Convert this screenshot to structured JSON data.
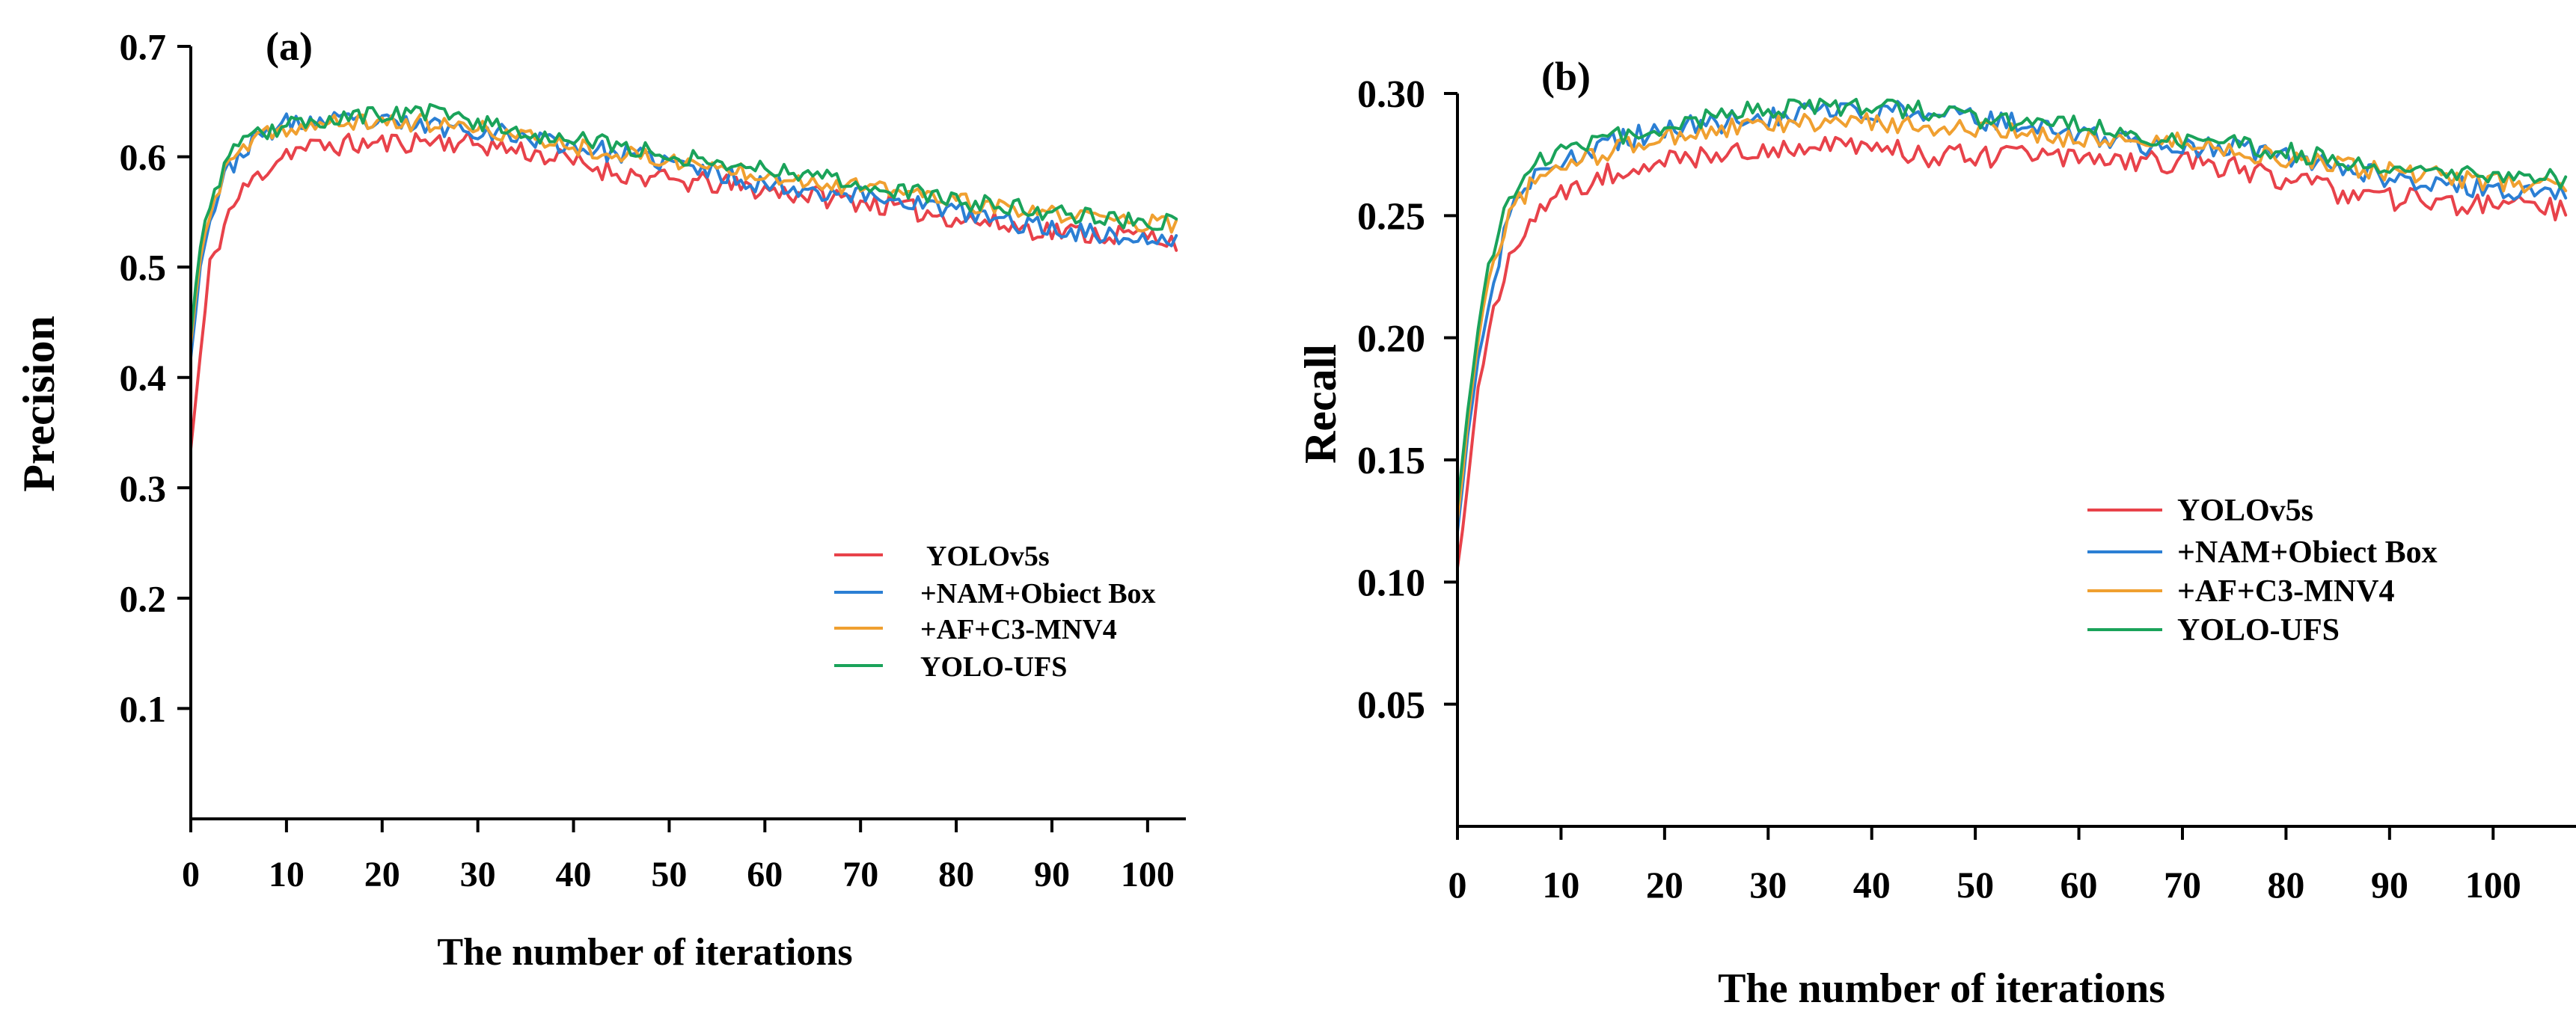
{
  "chart_data": [
    {
      "type": "line",
      "panel_label": "(a)",
      "xlabel": "The number of iterations",
      "ylabel": "Precision",
      "xlim": [
        0,
        104
      ],
      "ylim": [
        0,
        0.7
      ],
      "x_ticks": [
        0,
        10,
        20,
        30,
        40,
        50,
        60,
        70,
        80,
        90,
        100
      ],
      "y_ticks": [
        0.1,
        0.2,
        0.3,
        0.4,
        0.5,
        0.6,
        0.7
      ],
      "legend_position": "right-middle",
      "series": [
        {
          "name": "YOLOv5s",
          "color": "#e8424a",
          "seed": 11,
          "noise": 0.01,
          "keyframes": [
            [
              0,
              0.335
            ],
            [
              1,
              0.42
            ],
            [
              2,
              0.5
            ],
            [
              4,
              0.55
            ],
            [
              6,
              0.575
            ],
            [
              8,
              0.59
            ],
            [
              10,
              0.605
            ],
            [
              14,
              0.61
            ],
            [
              20,
              0.612
            ],
            [
              25,
              0.615
            ],
            [
              30,
              0.612
            ],
            [
              35,
              0.605
            ],
            [
              40,
              0.595
            ],
            [
              45,
              0.585
            ],
            [
              50,
              0.578
            ],
            [
              55,
              0.575
            ],
            [
              60,
              0.57
            ],
            [
              65,
              0.565
            ],
            [
              70,
              0.56
            ],
            [
              75,
              0.552
            ],
            [
              80,
              0.545
            ],
            [
              85,
              0.538
            ],
            [
              90,
              0.533
            ],
            [
              95,
              0.53
            ],
            [
              100,
              0.528
            ],
            [
              103,
              0.525
            ]
          ]
        },
        {
          "name": "+NAM+Obiect Box",
          "color": "#2b7fd4",
          "seed": 23,
          "noise": 0.009,
          "keyframes": [
            [
              0,
              0.42
            ],
            [
              1,
              0.5
            ],
            [
              2,
              0.545
            ],
            [
              4,
              0.59
            ],
            [
              6,
              0.61
            ],
            [
              8,
              0.622
            ],
            [
              10,
              0.63
            ],
            [
              15,
              0.632
            ],
            [
              20,
              0.63
            ],
            [
              25,
              0.628
            ],
            [
              30,
              0.625
            ],
            [
              35,
              0.618
            ],
            [
              40,
              0.61
            ],
            [
              45,
              0.602
            ],
            [
              50,
              0.595
            ],
            [
              55,
              0.585
            ],
            [
              60,
              0.575
            ],
            [
              65,
              0.57
            ],
            [
              70,
              0.565
            ],
            [
              75,
              0.56
            ],
            [
              80,
              0.55
            ],
            [
              85,
              0.542
            ],
            [
              90,
              0.535
            ],
            [
              95,
              0.53
            ],
            [
              100,
              0.524
            ],
            [
              103,
              0.522
            ]
          ]
        },
        {
          "name": "+AF+C3-MNV4",
          "color": "#f0a030",
          "seed": 37,
          "noise": 0.008,
          "keyframes": [
            [
              0,
              0.43
            ],
            [
              1,
              0.51
            ],
            [
              2,
              0.55
            ],
            [
              4,
              0.595
            ],
            [
              6,
              0.61
            ],
            [
              8,
              0.62
            ],
            [
              10,
              0.625
            ],
            [
              15,
              0.63
            ],
            [
              20,
              0.632
            ],
            [
              25,
              0.63
            ],
            [
              30,
              0.625
            ],
            [
              35,
              0.618
            ],
            [
              40,
              0.61
            ],
            [
              45,
              0.602
            ],
            [
              50,
              0.597
            ],
            [
              55,
              0.59
            ],
            [
              60,
              0.585
            ],
            [
              65,
              0.578
            ],
            [
              70,
              0.572
            ],
            [
              75,
              0.568
            ],
            [
              80,
              0.56
            ],
            [
              85,
              0.552
            ],
            [
              90,
              0.548
            ],
            [
              95,
              0.545
            ],
            [
              100,
              0.54
            ],
            [
              103,
              0.538
            ]
          ]
        },
        {
          "name": "YOLO-UFS",
          "color": "#1aa35a",
          "seed": 53,
          "noise": 0.008,
          "keyframes": [
            [
              0,
              0.44
            ],
            [
              1,
              0.52
            ],
            [
              2,
              0.56
            ],
            [
              4,
              0.6
            ],
            [
              6,
              0.615
            ],
            [
              8,
              0.622
            ],
            [
              10,
              0.628
            ],
            [
              15,
              0.635
            ],
            [
              20,
              0.638
            ],
            [
              25,
              0.64
            ],
            [
              30,
              0.632
            ],
            [
              35,
              0.622
            ],
            [
              40,
              0.615
            ],
            [
              45,
              0.61
            ],
            [
              50,
              0.602
            ],
            [
              55,
              0.595
            ],
            [
              60,
              0.59
            ],
            [
              65,
              0.585
            ],
            [
              70,
              0.575
            ],
            [
              75,
              0.568
            ],
            [
              80,
              0.56
            ],
            [
              85,
              0.555
            ],
            [
              90,
              0.55
            ],
            [
              95,
              0.545
            ],
            [
              100,
              0.542
            ],
            [
              103,
              0.54
            ]
          ]
        }
      ]
    },
    {
      "type": "line",
      "panel_label": "(b)",
      "xlabel": "The number of iterations",
      "ylabel": "Recall",
      "xlim": [
        0,
        108
      ],
      "ylim": [
        0,
        0.3
      ],
      "x_ticks": [
        0,
        10,
        20,
        30,
        40,
        50,
        60,
        70,
        80,
        90,
        100
      ],
      "y_ticks": [
        0.05,
        0.1,
        0.15,
        0.2,
        0.25,
        0.3
      ],
      "legend_position": "right-middle",
      "series": [
        {
          "name": "YOLOv5s",
          "color": "#e8424a",
          "seed": 71,
          "noise": 0.005,
          "keyframes": [
            [
              0,
              0.105
            ],
            [
              1,
              0.14
            ],
            [
              2,
              0.18
            ],
            [
              3,
              0.205
            ],
            [
              5,
              0.23
            ],
            [
              7,
              0.245
            ],
            [
              10,
              0.26
            ],
            [
              15,
              0.268
            ],
            [
              20,
              0.272
            ],
            [
              25,
              0.275
            ],
            [
              30,
              0.277
            ],
            [
              35,
              0.279
            ],
            [
              40,
              0.277
            ],
            [
              45,
              0.275
            ],
            [
              50,
              0.274
            ],
            [
              55,
              0.274
            ],
            [
              60,
              0.274
            ],
            [
              65,
              0.273
            ],
            [
              70,
              0.272
            ],
            [
              75,
              0.27
            ],
            [
              80,
              0.265
            ],
            [
              85,
              0.26
            ],
            [
              90,
              0.257
            ],
            [
              95,
              0.255
            ],
            [
              100,
              0.254
            ],
            [
              107,
              0.252
            ]
          ]
        },
        {
          "name": "+NAM+Obiect Box",
          "color": "#2b7fd4",
          "seed": 83,
          "noise": 0.0045,
          "keyframes": [
            [
              0,
              0.12
            ],
            [
              1,
              0.16
            ],
            [
              2,
              0.19
            ],
            [
              3,
              0.215
            ],
            [
              5,
              0.25
            ],
            [
              7,
              0.265
            ],
            [
              10,
              0.272
            ],
            [
              15,
              0.28
            ],
            [
              20,
              0.285
            ],
            [
              25,
              0.288
            ],
            [
              30,
              0.29
            ],
            [
              35,
              0.292
            ],
            [
              40,
              0.293
            ],
            [
              45,
              0.292
            ],
            [
              50,
              0.29
            ],
            [
              55,
              0.287
            ],
            [
              60,
              0.283
            ],
            [
              65,
              0.28
            ],
            [
              70,
              0.277
            ],
            [
              75,
              0.278
            ],
            [
              80,
              0.275
            ],
            [
              85,
              0.27
            ],
            [
              90,
              0.266
            ],
            [
              95,
              0.263
            ],
            [
              100,
              0.26
            ],
            [
              107,
              0.259
            ]
          ]
        },
        {
          "name": "+AF+C3-MNV4",
          "color": "#f0a030",
          "seed": 97,
          "noise": 0.004,
          "keyframes": [
            [
              0,
              0.125
            ],
            [
              1,
              0.165
            ],
            [
              2,
              0.2
            ],
            [
              3,
              0.225
            ],
            [
              5,
              0.25
            ],
            [
              7,
              0.262
            ],
            [
              10,
              0.27
            ],
            [
              15,
              0.277
            ],
            [
              20,
              0.282
            ],
            [
              25,
              0.285
            ],
            [
              30,
              0.287
            ],
            [
              35,
              0.288
            ],
            [
              40,
              0.288
            ],
            [
              45,
              0.287
            ],
            [
              50,
              0.285
            ],
            [
              55,
              0.283
            ],
            [
              60,
              0.282
            ],
            [
              65,
              0.281
            ],
            [
              70,
              0.28
            ],
            [
              75,
              0.277
            ],
            [
              80,
              0.273
            ],
            [
              85,
              0.27
            ],
            [
              90,
              0.268
            ],
            [
              95,
              0.266
            ],
            [
              100,
              0.264
            ],
            [
              107,
              0.262
            ]
          ]
        },
        {
          "name": "YOLO-UFS",
          "color": "#1aa35a",
          "seed": 109,
          "noise": 0.004,
          "keyframes": [
            [
              0,
              0.13
            ],
            [
              1,
              0.17
            ],
            [
              2,
              0.205
            ],
            [
              3,
              0.23
            ],
            [
              5,
              0.258
            ],
            [
              7,
              0.27
            ],
            [
              10,
              0.276
            ],
            [
              15,
              0.282
            ],
            [
              20,
              0.287
            ],
            [
              25,
              0.291
            ],
            [
              30,
              0.294
            ],
            [
              35,
              0.295
            ],
            [
              40,
              0.295
            ],
            [
              45,
              0.293
            ],
            [
              50,
              0.29
            ],
            [
              55,
              0.288
            ],
            [
              60,
              0.287
            ],
            [
              65,
              0.284
            ],
            [
              70,
              0.281
            ],
            [
              75,
              0.279
            ],
            [
              80,
              0.276
            ],
            [
              85,
              0.273
            ],
            [
              90,
              0.27
            ],
            [
              95,
              0.268
            ],
            [
              100,
              0.267
            ],
            [
              107,
              0.265
            ]
          ]
        }
      ]
    }
  ]
}
